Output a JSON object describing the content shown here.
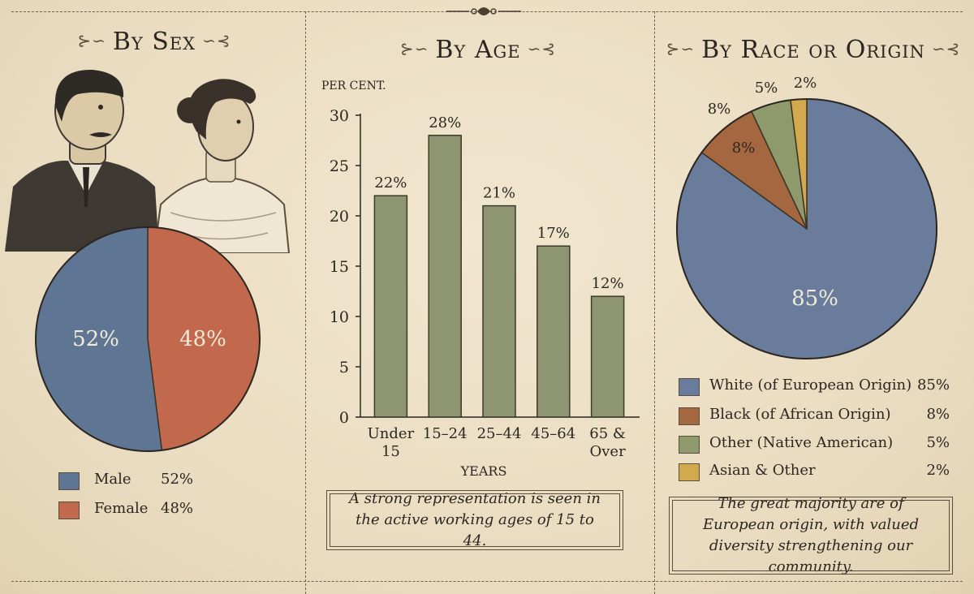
{
  "panels": {
    "sex": {
      "title": "By Sex"
    },
    "age": {
      "title": "By Age",
      "note": "A strong representation is seen in the active working ages of 15 to 44."
    },
    "race": {
      "title": "By Race or Origin",
      "note": "The great majority are of European origin, with valued diversity strengthening our community."
    }
  },
  "colors": {
    "male": "#5f7594",
    "female": "#c2684c",
    "bar": "#8d9670",
    "white": "#6a7c9b",
    "black": "#a4673f",
    "native": "#8e9a6c",
    "asian": "#d3a94e"
  },
  "chart_data": [
    {
      "type": "pie",
      "slices": [
        {
          "label": "Male",
          "value": 52,
          "display": "52%"
        },
        {
          "label": "Female",
          "value": 48,
          "display": "48%"
        }
      ],
      "legend_placement": "bottom"
    },
    {
      "type": "bar",
      "ylabel": "PER CENT.",
      "xlabel": "YEARS",
      "categories": [
        "Under 15",
        "15–24",
        "25–44",
        "45–64",
        "65 & Over"
      ],
      "values": [
        22,
        28,
        21,
        17,
        12
      ],
      "value_labels": [
        "22%",
        "28%",
        "21%",
        "17%",
        "12%"
      ],
      "ylim": [
        0,
        30
      ],
      "yticks": [
        "0",
        "5",
        "10",
        "15",
        "20",
        "25",
        "30"
      ],
      "grid": false
    },
    {
      "type": "pie",
      "slices": [
        {
          "label": "White (of European Origin)",
          "value": 85,
          "display": "85%"
        },
        {
          "label": "Black (of African Origin)",
          "value": 8,
          "display": "8%"
        },
        {
          "label": "Other (Native American)",
          "value": 5,
          "display": "5%"
        },
        {
          "label": "Asian & Other",
          "value": 2,
          "display": "2%"
        }
      ],
      "outside_labels": [
        "8%",
        "5%",
        "2%"
      ],
      "legend_placement": "bottom"
    }
  ]
}
